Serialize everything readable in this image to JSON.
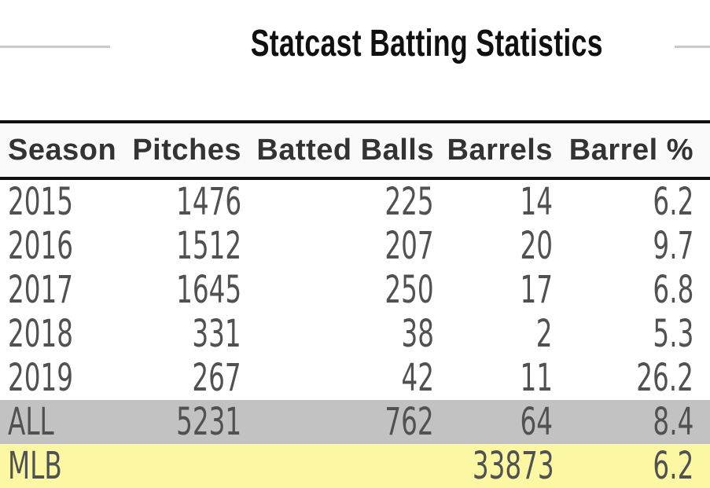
{
  "page_title": "Statcast Batting Statistics",
  "chart_data": {
    "type": "table",
    "title": "Statcast Batting Statistics",
    "columns": [
      "Season",
      "Pitches",
      "Batted Balls",
      "Barrels",
      "Barrel %"
    ],
    "rows": [
      {
        "season": "2015",
        "pitches": "1476",
        "batted_balls": "225",
        "barrels": "14",
        "barrel_pct": "6.2"
      },
      {
        "season": "2016",
        "pitches": "1512",
        "batted_balls": "207",
        "barrels": "20",
        "barrel_pct": "9.7"
      },
      {
        "season": "2017",
        "pitches": "1645",
        "batted_balls": "250",
        "barrels": "17",
        "barrel_pct": "6.8"
      },
      {
        "season": "2018",
        "pitches": "331",
        "batted_balls": "38",
        "barrels": "2",
        "barrel_pct": "5.3"
      },
      {
        "season": "2019",
        "pitches": "267",
        "batted_balls": "42",
        "barrels": "11",
        "barrel_pct": "26.2"
      },
      {
        "season": "ALL",
        "pitches": "5231",
        "batted_balls": "762",
        "barrels": "64",
        "barrel_pct": "8.4"
      },
      {
        "season": "MLB",
        "pitches": "",
        "batted_balls": "",
        "barrels": "33873",
        "barrel_pct": "6.2"
      }
    ],
    "row_variants": [
      "default",
      "default",
      "default",
      "default",
      "default",
      "total",
      "mlb"
    ],
    "colors": {
      "header_bg": "#fafafa",
      "header_border": "#111111",
      "header_text": "#333333",
      "data_text": "#515151",
      "total_row_bg": "#c2c2c2",
      "mlb_row_bg": "#fbf7a3",
      "title_rule": "#c9c9c9",
      "title_text": "#101010"
    }
  }
}
